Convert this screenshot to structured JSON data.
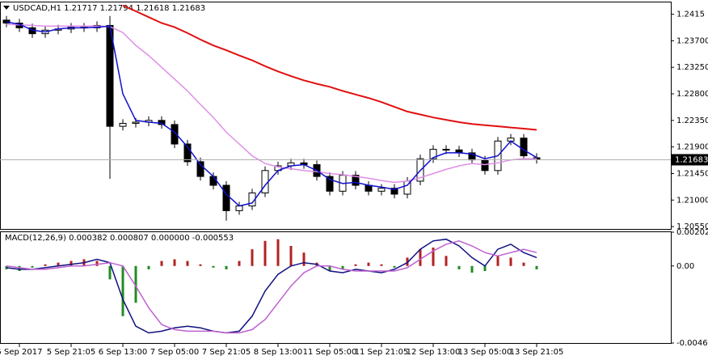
{
  "chart_data": [
    {
      "type": "candlestick",
      "title": "USDCAD,H1  1.21717 1.21794 1.21618 1.21683",
      "categories": [
        null,
        "5 Sep 2017",
        null,
        null,
        null,
        "5 Sep 21:05",
        null,
        null,
        null,
        "6 Sep 13:00",
        null,
        null,
        null,
        "7 Sep 05:00",
        null,
        null,
        null,
        "7 Sep 21:05",
        null,
        null,
        null,
        "8 Sep 13:00",
        null,
        null,
        null,
        "11 Sep 05:00",
        null,
        null,
        null,
        "11 Sep 21:05",
        null,
        null,
        null,
        "12 Sep 13:00",
        null,
        null,
        null,
        "13 Sep 05:00",
        null,
        null,
        null,
        "13 Sep 21:05"
      ],
      "open": [
        1.2405,
        1.24,
        1.2392,
        1.2382,
        1.2388,
        1.239,
        1.2393,
        1.2392,
        1.2396,
        1.2225,
        1.223,
        1.2232,
        1.2235,
        1.2228,
        1.2195,
        1.2165,
        1.214,
        1.2125,
        1.2082,
        1.209,
        1.2112,
        1.215,
        1.2158,
        1.2163,
        1.216,
        1.214,
        1.2115,
        1.2142,
        1.2125,
        1.2115,
        1.212,
        1.211,
        1.2132,
        1.217,
        1.2186,
        1.2185,
        1.218,
        1.2168,
        1.215,
        1.22,
        1.2205,
        1.21717
      ],
      "high": [
        1.2412,
        1.2407,
        1.2399,
        1.2395,
        1.2397,
        1.24,
        1.24,
        1.2403,
        1.2412,
        1.2237,
        1.2239,
        1.2242,
        1.2242,
        1.2235,
        1.2202,
        1.2172,
        1.2147,
        1.2132,
        1.2097,
        1.2119,
        1.2157,
        1.2165,
        1.217,
        1.217,
        1.2167,
        1.2147,
        1.2149,
        1.2149,
        1.2132,
        1.2127,
        1.2127,
        1.2139,
        1.2177,
        1.2193,
        1.2193,
        1.2192,
        1.2187,
        1.2175,
        1.2207,
        1.2212,
        1.2212,
        1.21794
      ],
      "low": [
        1.2393,
        1.2385,
        1.2375,
        1.2375,
        1.2381,
        1.2383,
        1.2385,
        1.2385,
        1.2136,
        1.2218,
        1.2223,
        1.2225,
        1.2221,
        1.2188,
        1.2158,
        1.2133,
        1.2118,
        1.2065,
        1.2075,
        1.2083,
        1.2105,
        1.2143,
        1.2151,
        1.2153,
        1.2133,
        1.2108,
        1.2108,
        1.2118,
        1.2108,
        1.2108,
        1.2103,
        1.2103,
        1.2125,
        1.2163,
        1.2178,
        1.2173,
        1.2161,
        1.2143,
        1.2143,
        1.2193,
        1.2168,
        1.21618
      ],
      "close": [
        1.24,
        1.2392,
        1.2382,
        1.2388,
        1.239,
        1.2393,
        1.2392,
        1.2396,
        1.2225,
        1.223,
        1.2232,
        1.2235,
        1.2228,
        1.2195,
        1.2165,
        1.214,
        1.2125,
        1.2082,
        1.209,
        1.2112,
        1.215,
        1.2158,
        1.2163,
        1.216,
        1.214,
        1.2115,
        1.2142,
        1.2125,
        1.2115,
        1.212,
        1.211,
        1.2132,
        1.217,
        1.2186,
        1.2185,
        1.218,
        1.2168,
        1.215,
        1.22,
        1.2205,
        1.2175,
        1.21683
      ],
      "up_color": "#ffffff",
      "down_color": "#000000",
      "series": [
        {
          "color": "#e01010",
          "values": [
            null,
            null,
            null,
            null,
            null,
            null,
            null,
            null,
            null,
            1.243,
            1.242,
            1.241,
            1.24,
            1.2393,
            1.2383,
            1.2372,
            1.2362,
            1.2354,
            1.2345,
            1.2337,
            1.2327,
            1.2318,
            1.231,
            1.2303,
            1.2297,
            1.2292,
            1.2285,
            1.2279,
            1.2273,
            1.2266,
            1.2258,
            1.225,
            1.2245,
            1.224,
            1.2236,
            1.2232,
            1.2229,
            1.2227,
            1.2225,
            1.2223,
            1.2221,
            1.2219
          ]
        },
        {
          "color": "#e08ee8",
          "values": [
            1.2398,
            1.2397,
            1.2396,
            1.2395,
            1.2395,
            1.2395,
            1.2395,
            1.2395,
            1.2394,
            1.2384,
            1.2362,
            1.2345,
            1.2325,
            1.2305,
            1.2285,
            1.2262,
            1.224,
            1.2215,
            1.2195,
            1.2175,
            1.2162,
            1.2156,
            1.2153,
            1.215,
            1.2148,
            1.2145,
            1.2143,
            1.214,
            1.2137,
            1.2133,
            1.213,
            1.2132,
            1.2138,
            1.2145,
            1.2152,
            1.2158,
            1.2162,
            1.216,
            1.2163,
            1.2168,
            1.217,
            1.217
          ]
        },
        {
          "color": "#1010d0",
          "values": [
            1.2402,
            1.2398,
            1.2388,
            1.2385,
            1.239,
            1.2392,
            1.2392,
            1.2393,
            1.2395,
            1.228,
            1.2235,
            1.2232,
            1.223,
            1.2215,
            1.219,
            1.216,
            1.214,
            1.211,
            1.209,
            1.2095,
            1.2125,
            1.215,
            1.2158,
            1.216,
            1.215,
            1.2135,
            1.2128,
            1.213,
            1.2125,
            1.2122,
            1.2118,
            1.2125,
            1.215,
            1.2172,
            1.218,
            1.218,
            1.2178,
            1.217,
            1.2175,
            1.22,
            1.2185,
            1.2172
          ]
        }
      ],
      "ylim": [
        1.2051,
        1.2435
      ],
      "yticks": [
        1.2415,
        {
          "value": 1.237,
          "label": "1.23700"
        },
        {
          "value": 1.2325,
          "label": "1.23250"
        },
        {
          "value": 1.228,
          "label": "1.22800"
        },
        {
          "value": 1.2235,
          "label": "1.22350"
        },
        {
          "value": 1.219,
          "label": "1.21900"
        },
        {
          "value": 1.2145,
          "label": "1.21450"
        },
        {
          "value": 1.21,
          "label": "1.21000"
        },
        {
          "value": 1.2055,
          "label": "1.20550"
        }
      ],
      "last_price": {
        "value": 1.21683,
        "label": "1.21683"
      }
    },
    {
      "type": "macd",
      "title": "MACD(12,26,9) 0.000382 0.000807 0.000000 -0.000553",
      "values": [
        -0.0002,
        -0.0003,
        -0.0001,
        0.0001,
        0.0002,
        0.0003,
        0.0004,
        0.0003,
        -0.0008,
        -0.003,
        -0.0022,
        -0.0002,
        0.0003,
        0.0004,
        0.0003,
        0.0001,
        -0.0001,
        -0.0002,
        0.0003,
        0.001,
        0.0015,
        0.0016,
        0.0012,
        0.0008,
        0.0002,
        -0.0003,
        -0.0002,
        0.0001,
        0.0002,
        0.0001,
        -0.0001,
        0.0005,
        0.001,
        0.0011,
        0.0006,
        -0.0002,
        -0.0004,
        -0.0003,
        0.0006,
        0.0005,
        0.0002,
        -0.0002
      ],
      "up_color": "#b22222",
      "down_color": "#228b22",
      "series": [
        {
          "color": "#101080",
          "values": [
            -0.0001,
            -0.0002,
            -0.0002,
            -0.0001,
            0,
            0.0001,
            0.0002,
            0.0004,
            0.0002,
            -0.002,
            -0.0036,
            -0.004,
            -0.0039,
            -0.0037,
            -0.0036,
            -0.0037,
            -0.0039,
            -0.004,
            -0.0039,
            -0.003,
            -0.0015,
            -0.0005,
            0,
            0.0002,
            0.0001,
            -0.0003,
            -0.0004,
            -0.0002,
            -0.0003,
            -0.0004,
            -0.0002,
            0.0002,
            0.001,
            0.0015,
            0.0016,
            0.0012,
            0.0005,
            0,
            0.001,
            0.0013,
            0.0008,
            0.0005
          ]
        },
        {
          "color": "#c060d0",
          "values": [
            0,
            -0.0001,
            -0.0002,
            -0.0002,
            -0.0001,
            0,
            0,
            0.0001,
            0.0002,
            0,
            -0.0012,
            -0.0025,
            -0.0035,
            -0.0038,
            -0.0039,
            -0.0039,
            -0.0039,
            -0.004,
            -0.004,
            -0.0038,
            -0.0032,
            -0.0022,
            -0.0012,
            -0.0004,
            0,
            0,
            -0.0002,
            -0.0003,
            -0.0003,
            -0.0003,
            -0.0003,
            -0.0001,
            0.0004,
            0.0009,
            0.0013,
            0.0015,
            0.0012,
            0.0008,
            0.0006,
            0.0008,
            0.001,
            0.0008
          ]
        }
      ],
      "ylim": [
        -0.004605,
        0.002021
      ],
      "yticks": [
        0.002021,
        {
          "value": 0,
          "label": "0.00"
        },
        -0.004605
      ]
    }
  ]
}
